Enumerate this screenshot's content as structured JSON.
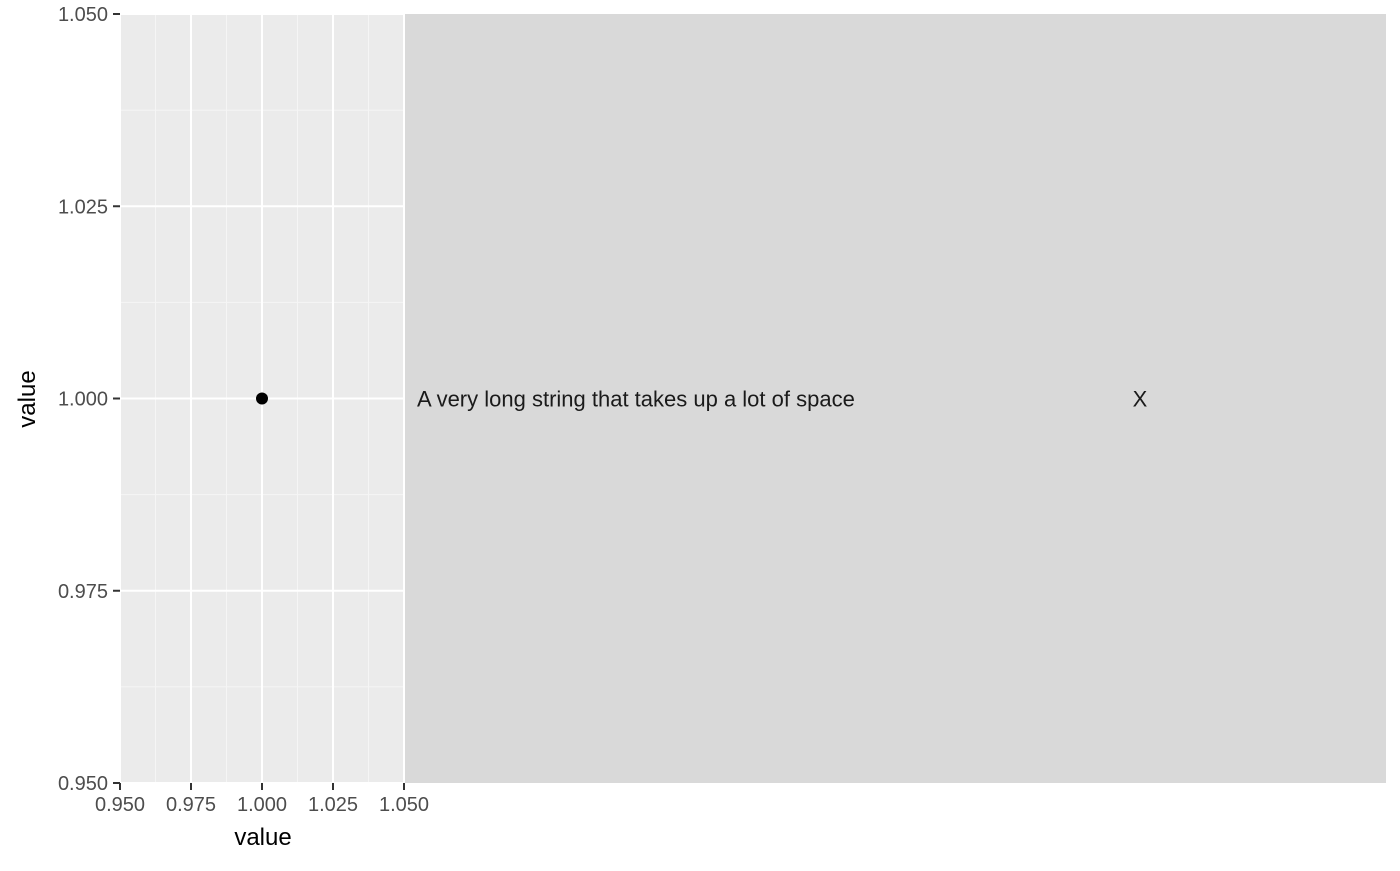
{
  "chart_data": {
    "type": "scatter",
    "title": "",
    "xlabel": "value",
    "ylabel": "value",
    "xlim": [
      0.95,
      1.05
    ],
    "ylim": [
      0.95,
      1.05
    ],
    "x_ticks": [
      0.95,
      0.975,
      1.0,
      1.025,
      1.05
    ],
    "x_tick_labels": [
      "0.950",
      "0.975",
      "1.000",
      "1.025",
      "1.050"
    ],
    "y_ticks": [
      0.95,
      0.975,
      1.0,
      1.025,
      1.05
    ],
    "y_tick_labels": [
      "0.950",
      "0.975",
      "1.000",
      "1.025",
      "1.050"
    ],
    "grid": true,
    "points": [
      {
        "x": 1.0,
        "y": 1.0
      }
    ],
    "table": {
      "columns": [
        "A very long string that takes up a lot of space",
        "X"
      ],
      "row_y": 1.0
    },
    "colors": {
      "panel_background": "#ebebeb",
      "table_background": "#d9d9d9",
      "grid_major": "#ffffff",
      "grid_minor": "#f5f5f5",
      "point": "#000000",
      "axis_text": "#4d4d4d",
      "title_text": "#000000"
    }
  }
}
